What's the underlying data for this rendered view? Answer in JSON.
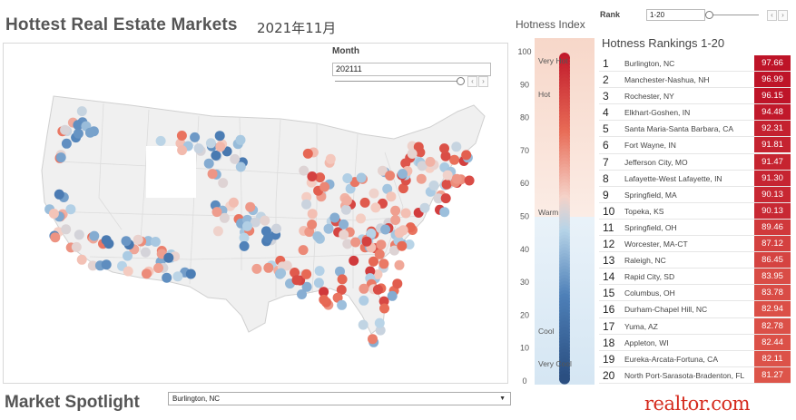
{
  "header": {
    "title": "Hottest Real Estate Markets",
    "subtitle": "2021年11月"
  },
  "month_filter": {
    "label": "Month",
    "value": "202111"
  },
  "hotness_index": {
    "title": "Hotness Index",
    "ticks": [
      "100",
      "90",
      "80",
      "70",
      "60",
      "50",
      "40",
      "30",
      "20",
      "10",
      "0"
    ],
    "labels": {
      "very_hot": "Very Hot",
      "hot": "Hot",
      "warm": "Warm",
      "cool": "Cool",
      "very_cool": "Very Cool"
    }
  },
  "rank_filter": {
    "label": "Rank",
    "value": "1-20"
  },
  "rankings": {
    "title": "Hotness Rankings 1-20",
    "rows": [
      {
        "rank": "1",
        "name": "Burlington, NC",
        "score": "97.66"
      },
      {
        "rank": "2",
        "name": "Manchester-Nashua, NH",
        "score": "96.99"
      },
      {
        "rank": "3",
        "name": "Rochester, NY",
        "score": "96.15"
      },
      {
        "rank": "4",
        "name": "Elkhart-Goshen, IN",
        "score": "94.48"
      },
      {
        "rank": "5",
        "name": "Santa Maria-Santa Barbara, CA",
        "score": "92.31"
      },
      {
        "rank": "6",
        "name": "Fort Wayne, IN",
        "score": "91.81"
      },
      {
        "rank": "7",
        "name": "Jefferson City, MO",
        "score": "91.47"
      },
      {
        "rank": "8",
        "name": "Lafayette-West Lafayette, IN",
        "score": "91.30"
      },
      {
        "rank": "9",
        "name": "Springfield, MA",
        "score": "90.13"
      },
      {
        "rank": "10",
        "name": "Topeka, KS",
        "score": "90.13"
      },
      {
        "rank": "11",
        "name": "Springfield, OH",
        "score": "89.46"
      },
      {
        "rank": "12",
        "name": "Worcester, MA-CT",
        "score": "87.12"
      },
      {
        "rank": "13",
        "name": "Raleigh, NC",
        "score": "86.45"
      },
      {
        "rank": "14",
        "name": "Rapid City, SD",
        "score": "83.95"
      },
      {
        "rank": "15",
        "name": "Columbus, OH",
        "score": "83.78"
      },
      {
        "rank": "16",
        "name": "Durham-Chapel Hill, NC",
        "score": "82.94"
      },
      {
        "rank": "17",
        "name": "Yuma, AZ",
        "score": "82.78"
      },
      {
        "rank": "18",
        "name": "Appleton, WI",
        "score": "82.44"
      },
      {
        "rank": "19",
        "name": "Eureka-Arcata-Fortuna, CA",
        "score": "82.11"
      },
      {
        "rank": "20",
        "name": "North Port-Sarasota-Bradenton, FL",
        "score": "81.27"
      }
    ]
  },
  "spotlight": {
    "title": "Market Spotlight",
    "selected": "Burlington, NC"
  },
  "brand": {
    "logo_text": "realtor.com"
  },
  "colors": {
    "hot_red": "#c8102e",
    "cool_blue": "#2c5f94",
    "warm": "#f2dcd3",
    "light_blue": "#d3e6f2",
    "logo_red": "#d52b1e"
  },
  "icons": {
    "slider_prev": "chevron-left-icon",
    "slider_next": "chevron-right-icon",
    "dropdown": "caret-down-icon"
  }
}
